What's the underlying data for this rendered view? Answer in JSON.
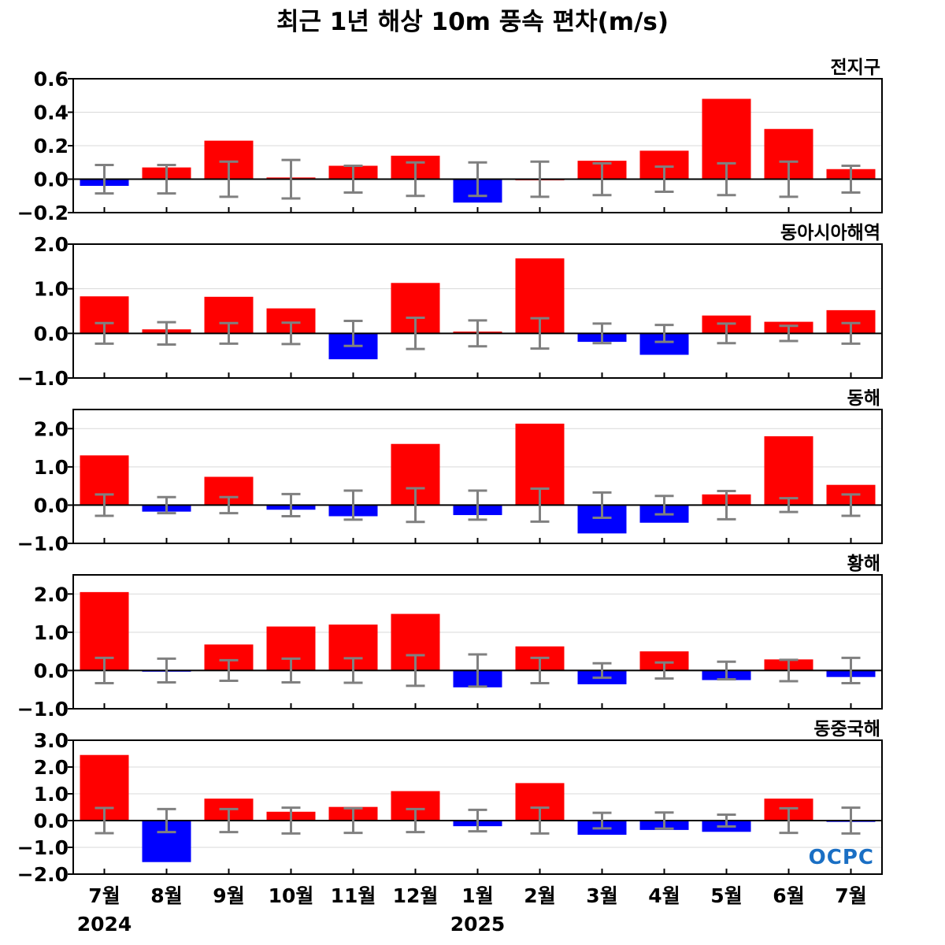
{
  "title": "최근 1년 해상 10m 풍속 편차(m/s)",
  "logo_text": "OCPC",
  "colors": {
    "positive": "#ff0000",
    "negative": "#0000ff",
    "error_bar": "#808080",
    "grid": "#d9d9d9",
    "zero_line": "#000000"
  },
  "chart_data": [
    {
      "type": "bar",
      "title": "전지구",
      "categories": [
        "7월",
        "8월",
        "9월",
        "10월",
        "11월",
        "12월",
        "1월",
        "2월",
        "3월",
        "4월",
        "5월",
        "6월",
        "7월"
      ],
      "years": [
        "2024",
        "",
        "",
        "",
        "",
        "",
        "2025",
        "",
        "",
        "",
        "",
        "",
        ""
      ],
      "values": [
        -0.04,
        0.07,
        0.23,
        0.01,
        0.08,
        0.14,
        -0.14,
        0.0,
        0.11,
        0.17,
        0.48,
        0.3,
        0.06
      ],
      "error": [
        0.085,
        0.085,
        0.105,
        0.115,
        0.08,
        0.1,
        0.1,
        0.105,
        0.095,
        0.075,
        0.095,
        0.105,
        0.08
      ],
      "ylim": [
        -0.2,
        0.6
      ],
      "yticks": [
        -0.2,
        0.0,
        0.2,
        0.4,
        0.6
      ],
      "ytick_labels": [
        "−0.2",
        "0.0",
        "0.2",
        "0.4",
        "0.6"
      ],
      "grid": true
    },
    {
      "type": "bar",
      "title": "동아시아해역",
      "categories": [
        "7월",
        "8월",
        "9월",
        "10월",
        "11월",
        "12월",
        "1월",
        "2월",
        "3월",
        "4월",
        "5월",
        "6월",
        "7월"
      ],
      "values": [
        0.83,
        0.09,
        0.82,
        0.56,
        -0.58,
        1.13,
        0.04,
        1.68,
        -0.19,
        -0.48,
        0.4,
        0.26,
        0.52
      ],
      "error": [
        0.23,
        0.25,
        0.23,
        0.24,
        0.28,
        0.35,
        0.29,
        0.34,
        0.22,
        0.19,
        0.22,
        0.17,
        0.23
      ],
      "ylim": [
        -1.0,
        2.0
      ],
      "yticks": [
        -1.0,
        0.0,
        1.0,
        2.0
      ],
      "ytick_labels": [
        "−1.0",
        "0.0",
        "1.0",
        "2.0"
      ],
      "grid": true
    },
    {
      "type": "bar",
      "title": "동해",
      "categories": [
        "7월",
        "8월",
        "9월",
        "10월",
        "11월",
        "12월",
        "1월",
        "2월",
        "3월",
        "4월",
        "5월",
        "6월",
        "7월"
      ],
      "values": [
        1.3,
        -0.17,
        0.74,
        -0.12,
        -0.29,
        1.6,
        -0.26,
        2.13,
        -0.74,
        -0.46,
        0.28,
        1.8,
        0.53
      ],
      "error": [
        0.28,
        0.21,
        0.21,
        0.29,
        0.38,
        0.44,
        0.38,
        0.43,
        0.33,
        0.24,
        0.37,
        0.18,
        0.28
      ],
      "ylim": [
        -1.0,
        2.5
      ],
      "yticks": [
        -1.0,
        0.0,
        1.0,
        2.0
      ],
      "ytick_labels": [
        "−1.0",
        "0.0",
        "1.0",
        "2.0"
      ],
      "grid": true
    },
    {
      "type": "bar",
      "title": "황해",
      "categories": [
        "7월",
        "8월",
        "9월",
        "10월",
        "11월",
        "12월",
        "1월",
        "2월",
        "3월",
        "4월",
        "5월",
        "6월",
        "7월"
      ],
      "values": [
        2.05,
        -0.02,
        0.68,
        1.15,
        1.2,
        1.48,
        -0.44,
        0.63,
        -0.36,
        0.5,
        -0.25,
        0.29,
        -0.17
      ],
      "error": [
        0.33,
        0.31,
        0.27,
        0.31,
        0.32,
        0.4,
        0.42,
        0.33,
        0.19,
        0.21,
        0.23,
        0.28,
        0.33
      ],
      "ylim": [
        -1.0,
        2.5
      ],
      "yticks": [
        -1.0,
        0.0,
        1.0,
        2.0
      ],
      "ytick_labels": [
        "−1.0",
        "0.0",
        "1.0",
        "2.0"
      ],
      "grid": true
    },
    {
      "type": "bar",
      "title": "동중국해",
      "categories": [
        "7월",
        "8월",
        "9월",
        "10월",
        "11월",
        "12월",
        "1월",
        "2월",
        "3월",
        "4월",
        "5월",
        "6월",
        "7월"
      ],
      "values": [
        2.45,
        -1.55,
        0.82,
        0.33,
        0.51,
        1.1,
        -0.21,
        1.4,
        -0.53,
        -0.35,
        -0.42,
        0.82,
        -0.05
      ],
      "error": [
        0.47,
        0.43,
        0.43,
        0.48,
        0.46,
        0.43,
        0.4,
        0.48,
        0.29,
        0.3,
        0.22,
        0.46,
        0.48
      ],
      "ylim": [
        -2.0,
        3.0
      ],
      "yticks": [
        -2.0,
        -1.0,
        0.0,
        1.0,
        2.0,
        3.0
      ],
      "ytick_labels": [
        "−2.0",
        "−1.0",
        "0.0",
        "1.0",
        "2.0",
        "3.0"
      ],
      "grid": true
    }
  ]
}
